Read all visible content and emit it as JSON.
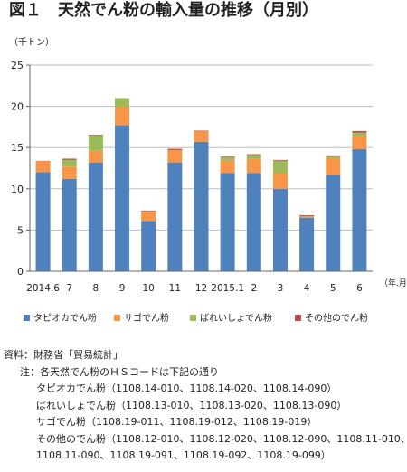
{
  "figure": {
    "number": "図１",
    "title": "天然でん粉の輸入量の推移（月別）"
  },
  "chart_data": {
    "type": "bar",
    "stacked": true,
    "ylabel": "（千トン）",
    "xlabel": "（年.月）",
    "ylim": [
      0,
      25
    ],
    "yticks": [
      0,
      5,
      10,
      15,
      20,
      25
    ],
    "grid": true,
    "legend_position": "bottom",
    "categories": [
      "2014.6",
      "7",
      "8",
      "9",
      "10",
      "11",
      "12",
      "2015.1",
      "2",
      "3",
      "4",
      "5",
      "6"
    ],
    "series": [
      {
        "name": "タピオカでん粉",
        "color": "#4f81bd",
        "values": [
          12.0,
          11.2,
          13.2,
          17.7,
          6.1,
          13.2,
          15.7,
          11.9,
          11.9,
          10.0,
          6.5,
          11.7,
          14.8
        ]
      },
      {
        "name": "サゴでん粉",
        "color": "#f79646",
        "values": [
          1.4,
          1.5,
          1.4,
          2.3,
          1.2,
          1.5,
          1.3,
          1.5,
          1.7,
          1.9,
          0.2,
          1.9,
          1.6
        ]
      },
      {
        "name": "ばれいしょでん粉",
        "color": "#9bbb59",
        "values": [
          0.0,
          0.8,
          1.9,
          1.0,
          0.0,
          0.0,
          0.0,
          0.4,
          0.5,
          1.5,
          0.0,
          0.3,
          0.4
        ]
      },
      {
        "name": "その他のでん粉",
        "color": "#c0504d",
        "values": [
          0.0,
          0.15,
          0.05,
          0.0,
          0.05,
          0.15,
          0.05,
          0.1,
          0.1,
          0.1,
          0.1,
          0.15,
          0.2
        ]
      }
    ]
  },
  "notes": {
    "source": "資料：財務省「貿易統計」",
    "note_intro": "注：各天然でん粉のＨＳコードは下記の通り",
    "tapioca": "タピオカでん粉（1108.14-010、1108.14-020、1108.14-090）",
    "potato": "ばれいしょでん粉（1108.13-010、1108.13-020、1108.13-090）",
    "sago": "サゴでん粉（1108.19-011、1108.19-012、1108.19-019）",
    "other_1": "その他のでん粉（1108.12-010、1108.12-020、1108.12-090、1108.11-010、",
    "other_2": "1108.11-090、1108.19-091、1108.19-092、1108.19-099）"
  }
}
